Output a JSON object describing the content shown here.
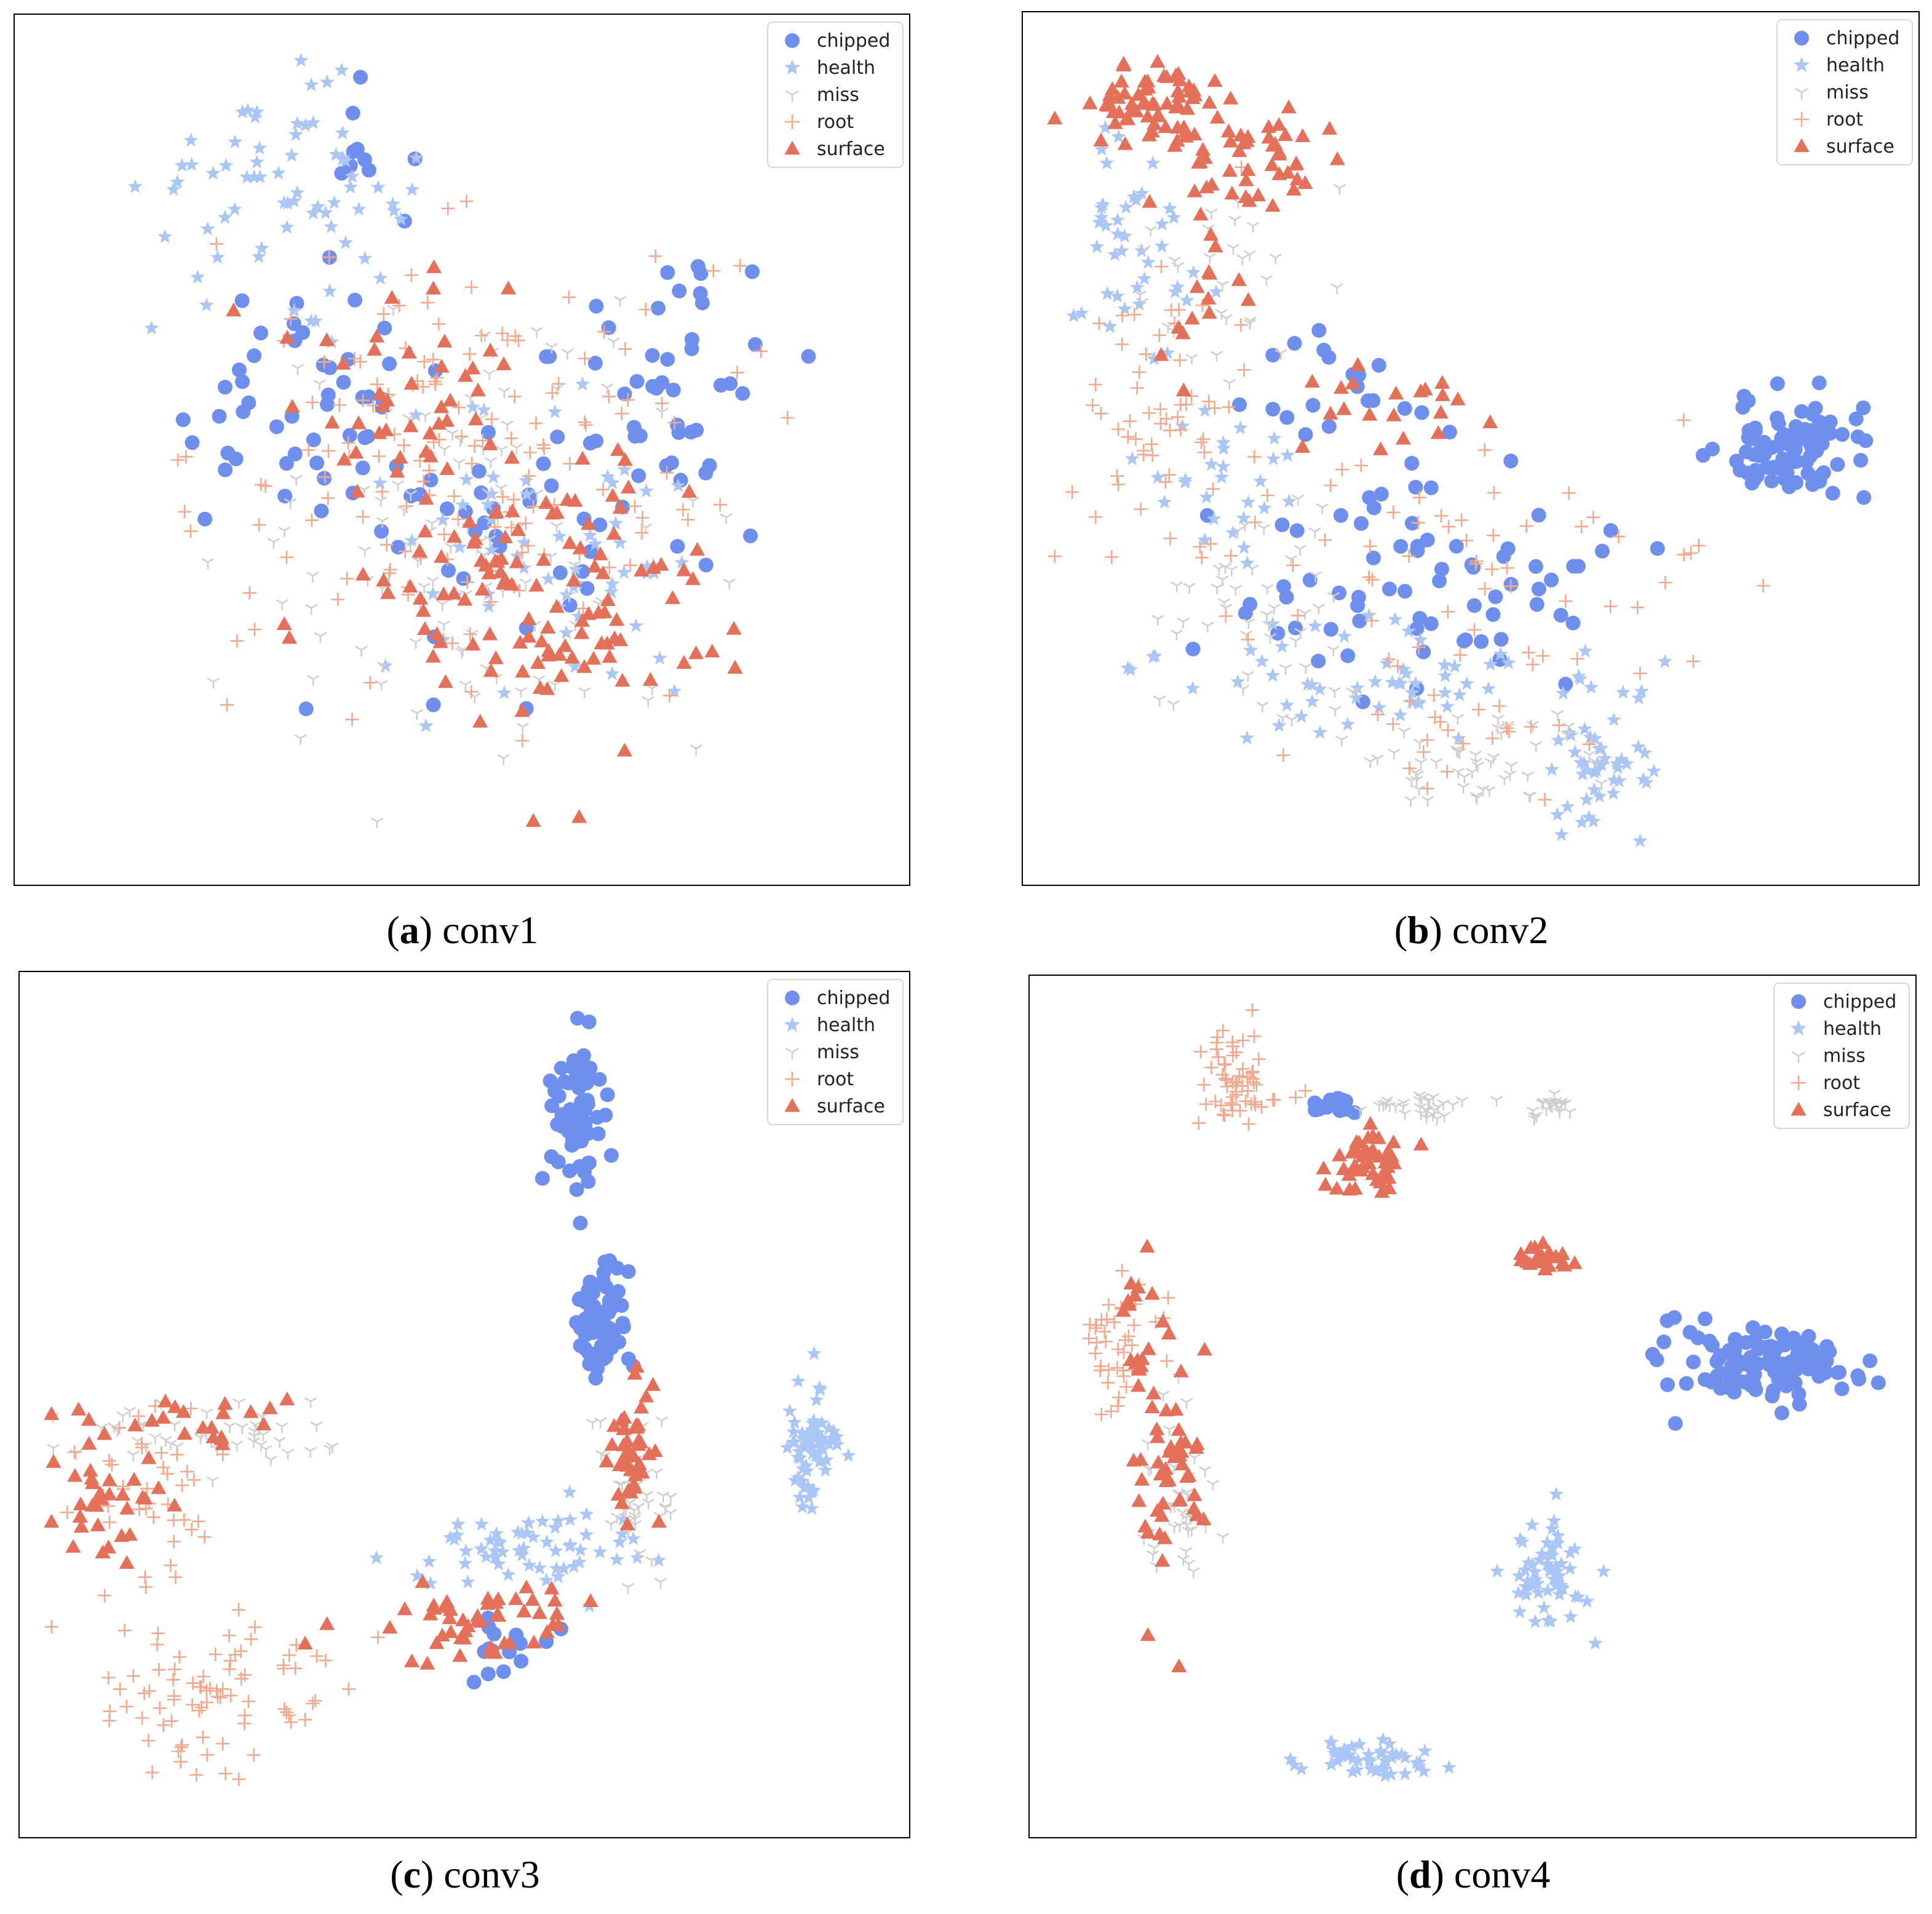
{
  "figure": {
    "colors": {
      "chipped": "#6f8fee",
      "health": "#a9c6f7",
      "miss": "#cfcfcf",
      "root": "#f2aa8e",
      "surface": "#e5705a"
    }
  },
  "chart_data": [
    {
      "type": "scatter",
      "panel_id": "a",
      "caption_letter": "a",
      "caption_text": "conv1",
      "xlim": [
        0,
        100
      ],
      "ylim": [
        0,
        100
      ],
      "legend": [
        "chipped",
        "health",
        "miss",
        "root",
        "surface"
      ],
      "legend_position": "top-right",
      "series": [
        {
          "name": "chipped",
          "marker": "circle",
          "clusters": [
            {
              "cx": 30,
              "cy": 55,
              "sx": 12,
              "sy": 10,
              "n": 45
            },
            {
              "cx": 75,
              "cy": 60,
              "sx": 9,
              "sy": 12,
              "n": 45
            },
            {
              "cx": 55,
              "cy": 40,
              "sx": 12,
              "sy": 14,
              "n": 40
            },
            {
              "cx": 40,
              "cy": 85,
              "sx": 5,
              "sy": 5,
              "n": 10
            }
          ]
        },
        {
          "name": "health",
          "marker": "star",
          "clusters": [
            {
              "cx": 28,
              "cy": 82,
              "sx": 10,
              "sy": 8,
              "n": 70
            },
            {
              "cx": 60,
              "cy": 35,
              "sx": 15,
              "sy": 12,
              "n": 60
            }
          ]
        },
        {
          "name": "miss",
          "marker": "tri",
          "clusters": [
            {
              "cx": 52,
              "cy": 40,
              "sx": 18,
              "sy": 18,
              "n": 110
            }
          ]
        },
        {
          "name": "root",
          "marker": "plus",
          "clusters": [
            {
              "cx": 50,
              "cy": 50,
              "sx": 20,
              "sy": 18,
              "n": 150
            }
          ]
        },
        {
          "name": "surface",
          "marker": "triangle",
          "clusters": [
            {
              "cx": 58,
              "cy": 32,
              "sx": 15,
              "sy": 12,
              "n": 120
            },
            {
              "cx": 45,
              "cy": 60,
              "sx": 10,
              "sy": 10,
              "n": 40
            }
          ]
        }
      ]
    },
    {
      "type": "scatter",
      "panel_id": "b",
      "caption_letter": "b",
      "caption_text": "conv2",
      "xlim": [
        0,
        100
      ],
      "ylim": [
        0,
        100
      ],
      "legend": [
        "chipped",
        "health",
        "miss",
        "root",
        "surface"
      ],
      "legend_position": "top-right",
      "series": [
        {
          "name": "chipped",
          "marker": "circle",
          "clusters": [
            {
              "cx": 88,
              "cy": 50,
              "sx": 6,
              "sy": 4,
              "n": 90
            },
            {
              "cx": 45,
              "cy": 33,
              "sx": 15,
              "sy": 10,
              "n": 70
            },
            {
              "cx": 40,
              "cy": 58,
              "sx": 10,
              "sy": 5,
              "n": 20
            }
          ]
        },
        {
          "name": "health",
          "marker": "star",
          "clusters": [
            {
              "cx": 10,
              "cy": 75,
              "sx": 4,
              "sy": 10,
              "n": 40
            },
            {
              "cx": 65,
              "cy": 12,
              "sx": 4,
              "sy": 6,
              "n": 45
            },
            {
              "cx": 40,
              "cy": 22,
              "sx": 18,
              "sy": 5,
              "n": 60
            },
            {
              "cx": 20,
              "cy": 45,
              "sx": 6,
              "sy": 10,
              "n": 30
            }
          ]
        },
        {
          "name": "miss",
          "marker": "tri",
          "clusters": [
            {
              "cx": 25,
              "cy": 28,
              "sx": 8,
              "sy": 10,
              "n": 50
            },
            {
              "cx": 50,
              "cy": 12,
              "sx": 10,
              "sy": 4,
              "n": 50
            },
            {
              "cx": 20,
              "cy": 70,
              "sx": 8,
              "sy": 8,
              "n": 30
            }
          ]
        },
        {
          "name": "root",
          "marker": "plus",
          "clusters": [
            {
              "cx": 15,
              "cy": 55,
              "sx": 8,
              "sy": 12,
              "n": 60
            },
            {
              "cx": 50,
              "cy": 35,
              "sx": 18,
              "sy": 10,
              "n": 60
            },
            {
              "cx": 50,
              "cy": 15,
              "sx": 8,
              "sy": 4,
              "n": 20
            }
          ]
        },
        {
          "name": "surface",
          "marker": "triangle",
          "clusters": [
            {
              "cx": 12,
              "cy": 92,
              "sx": 5,
              "sy": 3,
              "n": 60
            },
            {
              "cx": 25,
              "cy": 85,
              "sx": 8,
              "sy": 4,
              "n": 50
            },
            {
              "cx": 40,
              "cy": 55,
              "sx": 10,
              "sy": 4,
              "n": 20
            },
            {
              "cx": 18,
              "cy": 70,
              "sx": 5,
              "sy": 6,
              "n": 15
            }
          ]
        }
      ]
    },
    {
      "type": "scatter",
      "panel_id": "c",
      "caption_letter": "c",
      "caption_text": "conv3",
      "xlim": [
        0,
        100
      ],
      "ylim": [
        0,
        100
      ],
      "legend": [
        "chipped",
        "health",
        "miss",
        "root",
        "surface"
      ],
      "legend_position": "top-right",
      "series": [
        {
          "name": "chipped",
          "marker": "circle",
          "clusters": [
            {
              "cx": 63,
              "cy": 85,
              "sx": 2,
              "sy": 6,
              "n": 70
            },
            {
              "cx": 66,
              "cy": 60,
              "sx": 2,
              "sy": 5,
              "n": 60
            },
            {
              "cx": 55,
              "cy": 20,
              "sx": 3,
              "sy": 3,
              "n": 15
            }
          ]
        },
        {
          "name": "health",
          "marker": "star",
          "clusters": [
            {
              "cx": 91,
              "cy": 45,
              "sx": 2,
              "sy": 5,
              "n": 70
            },
            {
              "cx": 57,
              "cy": 32,
              "sx": 10,
              "sy": 4,
              "n": 60
            }
          ]
        },
        {
          "name": "miss",
          "marker": "tri",
          "clusters": [
            {
              "cx": 20,
              "cy": 46,
              "sx": 12,
              "sy": 3,
              "n": 50
            },
            {
              "cx": 70,
              "cy": 40,
              "sx": 4,
              "sy": 8,
              "n": 40
            }
          ]
        },
        {
          "name": "root",
          "marker": "plus",
          "clusters": [
            {
              "cx": 20,
              "cy": 15,
              "sx": 10,
              "sy": 6,
              "n": 80
            },
            {
              "cx": 12,
              "cy": 40,
              "sx": 6,
              "sy": 8,
              "n": 40
            }
          ]
        },
        {
          "name": "surface",
          "marker": "triangle",
          "clusters": [
            {
              "cx": 70,
              "cy": 45,
              "sx": 2,
              "sy": 6,
              "n": 45
            },
            {
              "cx": 50,
              "cy": 24,
              "sx": 10,
              "sy": 3,
              "n": 50
            },
            {
              "cx": 8,
              "cy": 40,
              "sx": 5,
              "sy": 6,
              "n": 35
            },
            {
              "cx": 15,
              "cy": 48,
              "sx": 10,
              "sy": 2,
              "n": 20
            }
          ]
        }
      ]
    },
    {
      "type": "scatter",
      "panel_id": "d",
      "caption_letter": "d",
      "caption_text": "conv4",
      "xlim": [
        0,
        100
      ],
      "ylim": [
        0,
        100
      ],
      "legend": [
        "chipped",
        "health",
        "miss",
        "root",
        "surface"
      ],
      "legend_position": "top-right",
      "series": [
        {
          "name": "chipped",
          "marker": "circle",
          "clusters": [
            {
              "cx": 85,
              "cy": 55,
              "sx": 8,
              "sy": 3,
              "n": 120
            },
            {
              "cx": 33,
              "cy": 87,
              "sx": 2,
              "sy": 1,
              "n": 15
            }
          ]
        },
        {
          "name": "health",
          "marker": "star",
          "clusters": [
            {
              "cx": 59,
              "cy": 30,
              "sx": 3,
              "sy": 5,
              "n": 60
            },
            {
              "cx": 38,
              "cy": 7,
              "sx": 5,
              "sy": 1.5,
              "n": 50
            }
          ]
        },
        {
          "name": "miss",
          "marker": "tri",
          "clusters": [
            {
              "cx": 44,
              "cy": 87,
              "sx": 4,
              "sy": 1,
              "n": 30
            },
            {
              "cx": 59,
              "cy": 87,
              "sx": 2,
              "sy": 1,
              "n": 20
            },
            {
              "cx": 15,
              "cy": 38,
              "sx": 3,
              "sy": 8,
              "n": 40
            }
          ]
        },
        {
          "name": "root",
          "marker": "plus",
          "clusters": [
            {
              "cx": 22,
              "cy": 90,
              "sx": 3,
              "sy": 4,
              "n": 60
            },
            {
              "cx": 8,
              "cy": 57,
              "sx": 3,
              "sy": 6,
              "n": 40
            }
          ]
        },
        {
          "name": "surface",
          "marker": "triangle",
          "clusters": [
            {
              "cx": 37,
              "cy": 80,
              "sx": 3,
              "sy": 3,
              "n": 45
            },
            {
              "cx": 59,
              "cy": 68,
              "sx": 2.5,
              "sy": 1,
              "n": 20
            },
            {
              "cx": 14,
              "cy": 42,
              "sx": 3,
              "sy": 10,
              "n": 50
            },
            {
              "cx": 10,
              "cy": 60,
              "sx": 2,
              "sy": 6,
              "n": 20
            }
          ]
        }
      ]
    }
  ]
}
